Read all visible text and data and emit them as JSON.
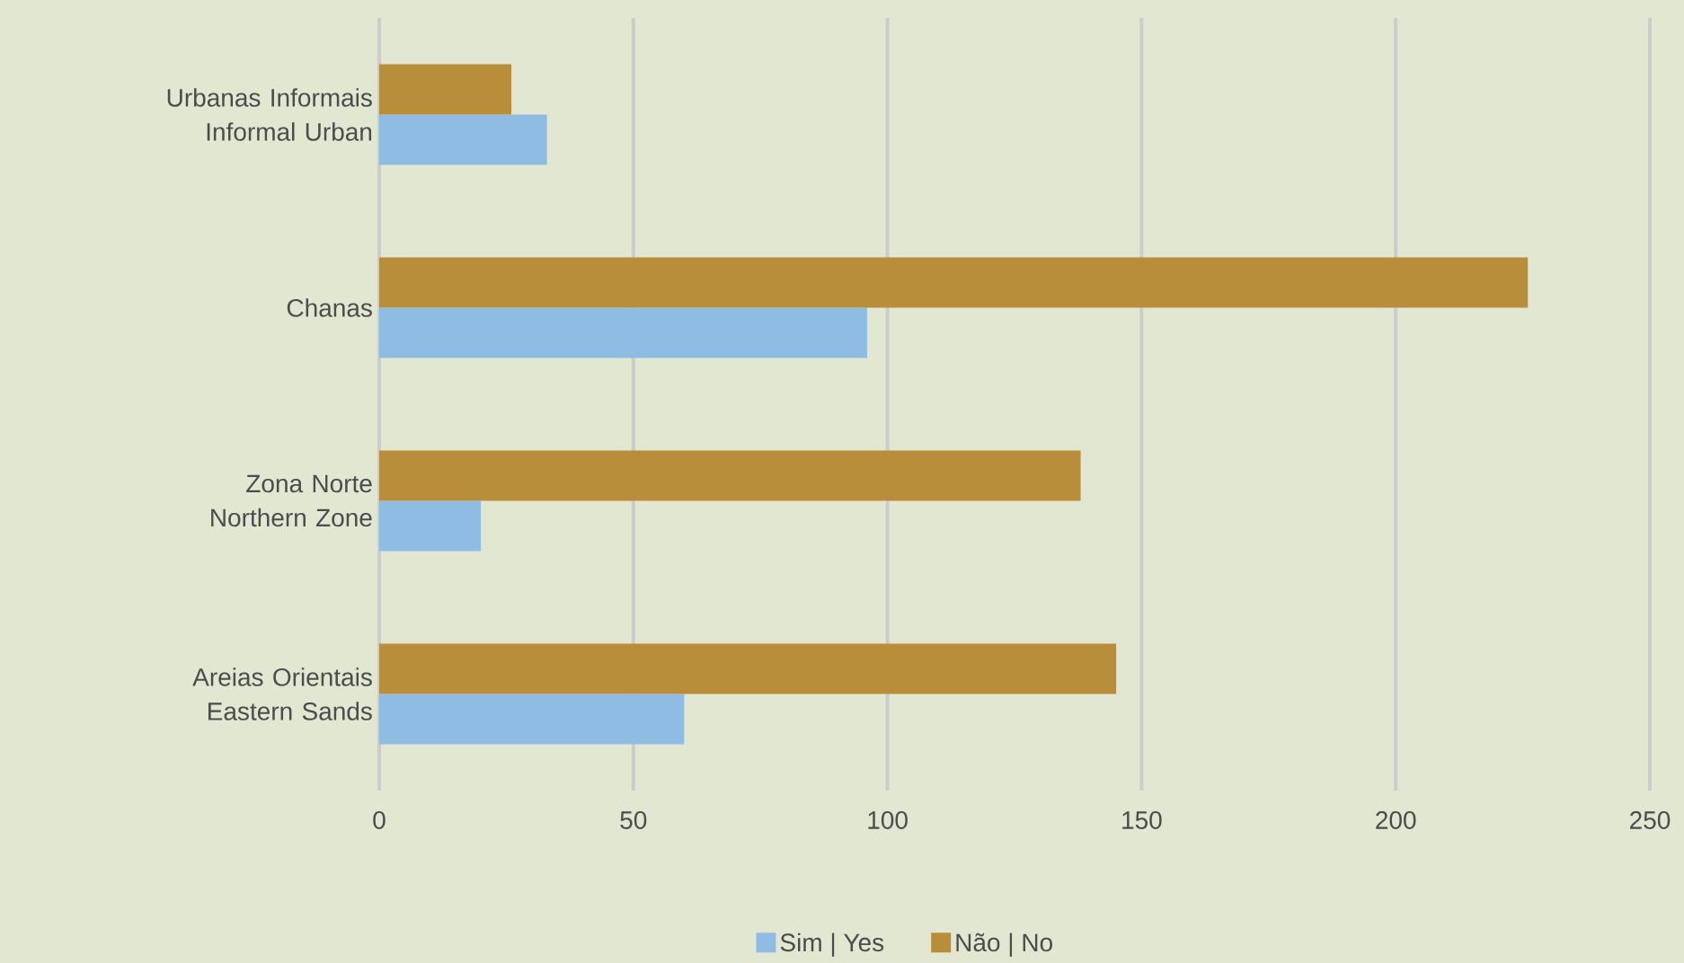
{
  "chart_data": {
    "type": "bar",
    "orientation": "horizontal",
    "categories": [
      "Urbanas Informais Informal Urban",
      "Chanas",
      "Zona Norte Northern Zone",
      "Areias Orientais Eastern Sands"
    ],
    "series": [
      {
        "name": "Sim | Yes",
        "color": "#8fbce3",
        "values": [
          33,
          96,
          20,
          60
        ]
      },
      {
        "name": "Não | No",
        "color": "#b98e3b",
        "values": [
          26,
          226,
          138,
          145
        ]
      }
    ],
    "xlim": [
      0,
      250
    ],
    "xticks": [
      0,
      50,
      100,
      150,
      200,
      250
    ],
    "grid": "x",
    "legend": "bottom"
  }
}
